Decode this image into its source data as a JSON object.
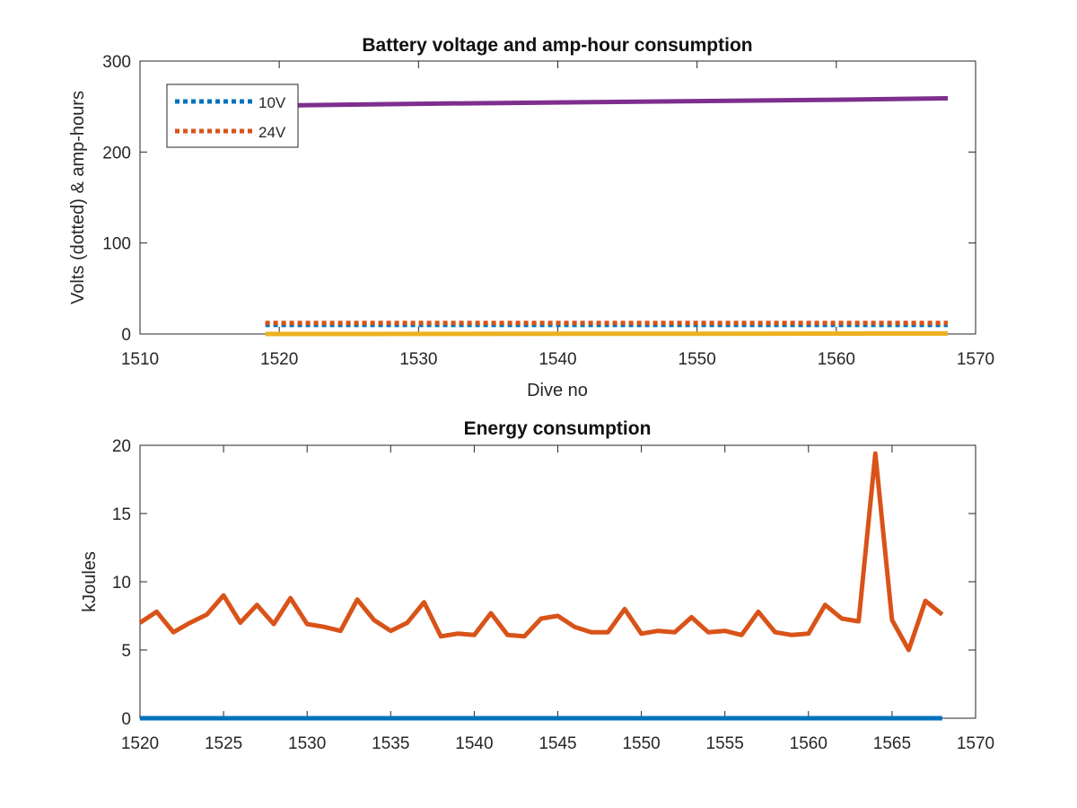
{
  "chart_data": [
    {
      "type": "line",
      "title": "Battery voltage and amp-hour consumption",
      "xlabel": "Dive no",
      "ylabel": "Volts (dotted) & amp-hours",
      "xlim": [
        1510,
        1570
      ],
      "ylim": [
        0,
        300
      ],
      "xticks": [
        1510,
        1520,
        1530,
        1540,
        1550,
        1560,
        1570
      ],
      "yticks": [
        0,
        100,
        200,
        300
      ],
      "grid": false,
      "legend_position": "top-left",
      "series": [
        {
          "name": "10V",
          "style": "dotted",
          "color": "#0072BD",
          "x": [
            1519,
            1568
          ],
          "y": [
            10,
            10
          ]
        },
        {
          "name": "24V",
          "style": "dotted",
          "color": "#D95319",
          "x": [
            1519,
            1568
          ],
          "y": [
            12,
            12
          ]
        },
        {
          "style": "solid",
          "color": "#EDB120",
          "x": [
            1519,
            1568
          ],
          "y": [
            0,
            0.5
          ]
        },
        {
          "style": "solid",
          "color": "#7E2F8E",
          "x": [
            1519,
            1530,
            1540,
            1550,
            1560,
            1568
          ],
          "y": [
            251,
            253,
            254.5,
            256,
            257.5,
            259
          ]
        }
      ]
    },
    {
      "type": "line",
      "title": "Energy consumption",
      "xlabel": "",
      "ylabel": "kJoules",
      "xlim": [
        1520,
        1570
      ],
      "ylim": [
        0,
        20
      ],
      "xticks": [
        1520,
        1525,
        1530,
        1535,
        1540,
        1545,
        1550,
        1555,
        1560,
        1565,
        1570
      ],
      "yticks": [
        0,
        5,
        10,
        15,
        20
      ],
      "grid": false,
      "series": [
        {
          "style": "solid",
          "color": "#0072BD",
          "x": [
            1520,
            1568
          ],
          "y": [
            0,
            0
          ]
        },
        {
          "style": "solid",
          "color": "#D95319",
          "x": [
            1520,
            1521,
            1522,
            1523,
            1524,
            1525,
            1526,
            1527,
            1528,
            1529,
            1530,
            1531,
            1532,
            1533,
            1534,
            1535,
            1536,
            1537,
            1538,
            1539,
            1540,
            1541,
            1542,
            1543,
            1544,
            1545,
            1546,
            1547,
            1548,
            1549,
            1550,
            1551,
            1552,
            1553,
            1554,
            1555,
            1556,
            1557,
            1558,
            1559,
            1560,
            1561,
            1562,
            1563,
            1564,
            1565,
            1566,
            1567,
            1568
          ],
          "y": [
            7.0,
            7.8,
            6.3,
            7.0,
            7.6,
            9.0,
            7.0,
            8.3,
            6.9,
            8.8,
            6.9,
            6.7,
            6.4,
            8.7,
            7.2,
            6.4,
            7.0,
            8.5,
            6.0,
            6.2,
            6.1,
            7.7,
            6.1,
            6.0,
            7.3,
            7.5,
            6.7,
            6.3,
            6.3,
            8.0,
            6.2,
            6.4,
            6.3,
            7.4,
            6.3,
            6.4,
            6.1,
            7.8,
            6.3,
            6.1,
            6.2,
            8.3,
            7.3,
            7.1,
            19.4,
            7.2,
            5.0,
            8.6,
            7.6
          ]
        }
      ]
    }
  ]
}
